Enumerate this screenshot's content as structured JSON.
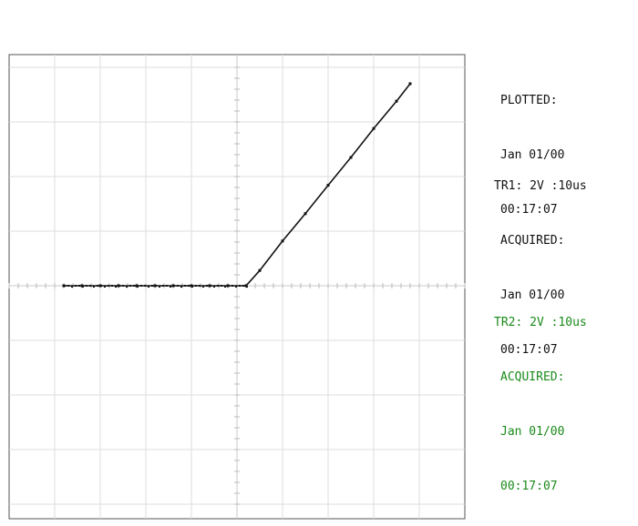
{
  "plot_info": {
    "label": "PLOTTED:",
    "date": "Jan 01/00",
    "time": "00:17:07"
  },
  "traces": [
    {
      "header": "TR1: 2V :10us",
      "acquired_label": "ACQUIRED:",
      "date": "Jan 01/00",
      "time": "00:17:07",
      "color": "#111111"
    },
    {
      "header": "TR2: 2V :10us",
      "acquired_label": "ACQUIRED:",
      "date": "Jan 01/00",
      "time": "00:17:07",
      "color": "#1a8a1a"
    }
  ],
  "chart_data": {
    "type": "scatter",
    "grid": true,
    "divisions": {
      "x": 10,
      "y": 8
    },
    "x_range_div": [
      -5,
      5
    ],
    "y_range_div": [
      -4,
      4
    ],
    "series": [
      {
        "trace_color": "#111111",
        "points_div": [
          [
            -3.8,
            0.0
          ],
          [
            -3.4,
            0.0
          ],
          [
            -3.0,
            0.0
          ],
          [
            -2.6,
            0.0
          ],
          [
            -2.2,
            0.0
          ],
          [
            -1.8,
            0.0
          ],
          [
            -1.4,
            0.0
          ],
          [
            -1.0,
            0.0
          ],
          [
            -0.6,
            0.0
          ],
          [
            -0.2,
            0.0
          ],
          [
            0.2,
            0.0
          ],
          [
            0.5,
            0.28
          ],
          [
            1.0,
            0.82
          ],
          [
            1.5,
            1.32
          ],
          [
            2.0,
            1.84
          ],
          [
            2.5,
            2.35
          ],
          [
            3.0,
            2.88
          ],
          [
            3.5,
            3.38
          ],
          [
            3.8,
            3.7
          ]
        ]
      }
    ]
  }
}
